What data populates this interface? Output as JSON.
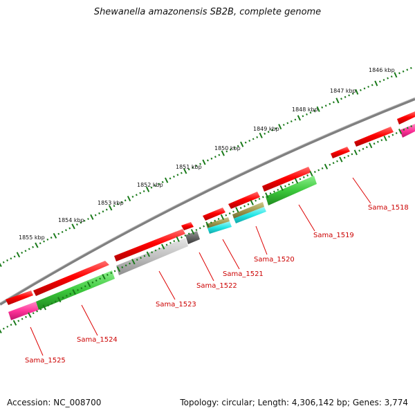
{
  "title": "Shewanella amazonensis SB2B, complete genome",
  "accession": "Accession: NC_008700",
  "summary": "Topology: circular; Length: 4,306,142 bp; Genes: 3,774",
  "ruler_labels": [
    "1846 kbp",
    "1847 kbp",
    "1848 kbp",
    "1849 kbp",
    "1850 kbp",
    "1851 kbp",
    "1852 kbp",
    "1853 kbp",
    "1854 kbp",
    "1855 kbp"
  ],
  "gene_labels": [
    "Sama_1518",
    "Sama_1519",
    "Sama_1520",
    "Sama_1521",
    "Sama_1522",
    "Sama_1523",
    "Sama_1524",
    "Sama_1525"
  ],
  "colors": {
    "forward_gene": "#ff0000",
    "gene_label": "#cc0000",
    "backbone": "#888888",
    "ruler": "#1a7a1a",
    "cog_green": "#44cc44",
    "cog_gray": "#c0c0c0",
    "cog_magenta": "#ff3399",
    "cog_cyan": "#22e6e6",
    "cog_olive": "#a09a50",
    "cog_darkgray": "#666666"
  }
}
